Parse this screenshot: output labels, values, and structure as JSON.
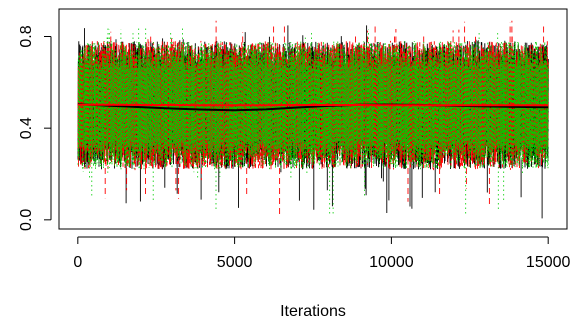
{
  "chart_data": {
    "type": "line",
    "title": "",
    "xlabel": "Iterations",
    "ylabel": "",
    "xlim": [
      -600,
      15600
    ],
    "ylim": [
      -0.04,
      0.92
    ],
    "x_ticks": [
      0,
      5000,
      10000,
      15000
    ],
    "x_tick_labels": [
      "0",
      "5000",
      "10000",
      "15000"
    ],
    "y_ticks": [
      0.0,
      0.4,
      0.8
    ],
    "y_tick_labels": [
      "0.0",
      "0.4",
      "0.8"
    ],
    "grid": false,
    "legend": "none",
    "n_iterations": 15000,
    "series": [
      {
        "color": "#000000",
        "style": "solid",
        "band": [
          0.22,
          0.78
        ],
        "extremes": [
          0.0,
          0.86
        ],
        "running_mean": {
          "x": [
            0,
            1000,
            2000,
            3000,
            4000,
            5000,
            6000,
            7000,
            8000,
            9000,
            10000,
            11000,
            12000,
            13000,
            14000,
            15000
          ],
          "y": [
            0.505,
            0.498,
            0.492,
            0.486,
            0.481,
            0.478,
            0.482,
            0.49,
            0.497,
            0.502,
            0.503,
            0.501,
            0.498,
            0.495,
            0.493,
            0.491
          ]
        }
      },
      {
        "color": "#ff0000",
        "style": "dashed",
        "band": [
          0.22,
          0.78
        ],
        "extremes": [
          0.0,
          0.87
        ],
        "running_mean": {
          "x": [
            0,
            1000,
            2000,
            3000,
            4000,
            5000,
            6000,
            7000,
            8000,
            9000,
            10000,
            11000,
            12000,
            13000,
            14000,
            15000
          ],
          "y": [
            0.502,
            0.502,
            0.501,
            0.501,
            0.5,
            0.5,
            0.5,
            0.501,
            0.501,
            0.501,
            0.5,
            0.5,
            0.5,
            0.5,
            0.5,
            0.5
          ]
        }
      },
      {
        "color": "#00cd00",
        "style": "dotted",
        "band": [
          0.22,
          0.78
        ],
        "extremes": [
          0.0,
          0.85
        ],
        "running_mean": {
          "x": [
            0,
            15000
          ],
          "y": [
            0.5,
            0.5
          ]
        }
      }
    ]
  }
}
